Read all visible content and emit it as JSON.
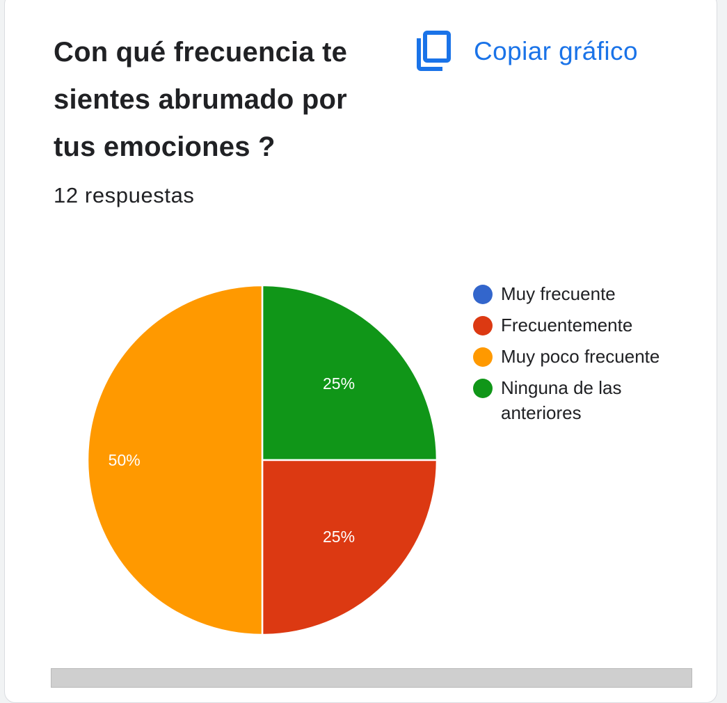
{
  "card": {
    "title": "Con qué frecuencia te sientes abrumado por tus emociones ?",
    "response_count": "12 respuestas",
    "copy_label": "Copiar gráfico",
    "copy_icon": "copy-icon"
  },
  "colors": {
    "accent": "#1a73e8",
    "muy_frecuente": "#3366cc",
    "frecuentemente": "#dc3912",
    "muy_poco_frecuente": "#ff9900",
    "ninguna": "#109618"
  },
  "chart_data": {
    "type": "pie",
    "title": "Con qué frecuencia te sientes abrumado por tus emociones ?",
    "total_responses": 12,
    "legend_position": "right",
    "categories": [
      "Muy frecuente",
      "Frecuentemente",
      "Muy poco frecuente",
      "Ninguna de las anteriores"
    ],
    "values": [
      0,
      3,
      6,
      3
    ],
    "percent_labels": [
      "",
      "25%",
      "50%",
      "25%"
    ],
    "colors": [
      "#3366cc",
      "#dc3912",
      "#ff9900",
      "#109618"
    ]
  }
}
